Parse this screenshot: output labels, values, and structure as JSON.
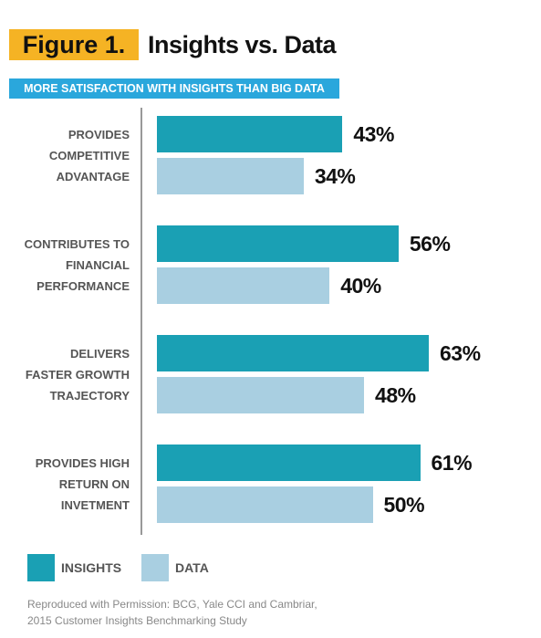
{
  "chart_data": {
    "type": "bar",
    "orientation": "horizontal",
    "figure_label": "Figure 1.",
    "title": "Insights vs. Data",
    "subtitle": "MORE SATISFACTION WITH INSIGHTS THAN BIG DATA",
    "categories": [
      "PROVIDES\nCOMPETITIVE\nADVANTAGE",
      "CONTRIBUTES TO\nFINANCIAL\nPERFORMANCE",
      "DELIVERS\nFASTER GROWTH\nTRAJECTORY",
      "PROVIDES HIGH\nRETURN ON\nINVETMENT"
    ],
    "series": [
      {
        "name": "INSIGHTS",
        "color": "#1aa0b4",
        "values": [
          43,
          56,
          63,
          61
        ],
        "value_labels": [
          "43%",
          "56%",
          "63%",
          "61%"
        ]
      },
      {
        "name": "DATA",
        "color": "#a9cfe1",
        "values": [
          34,
          40,
          48,
          50
        ],
        "value_labels": [
          "34%",
          "40%",
          "48%",
          "50%"
        ]
      }
    ],
    "legend": "bottom-left",
    "source": [
      "Reproduced with Permission: BCG, Yale CCI and Cambriar,",
      "2015 Customer Insights Benchmarking Study"
    ]
  }
}
